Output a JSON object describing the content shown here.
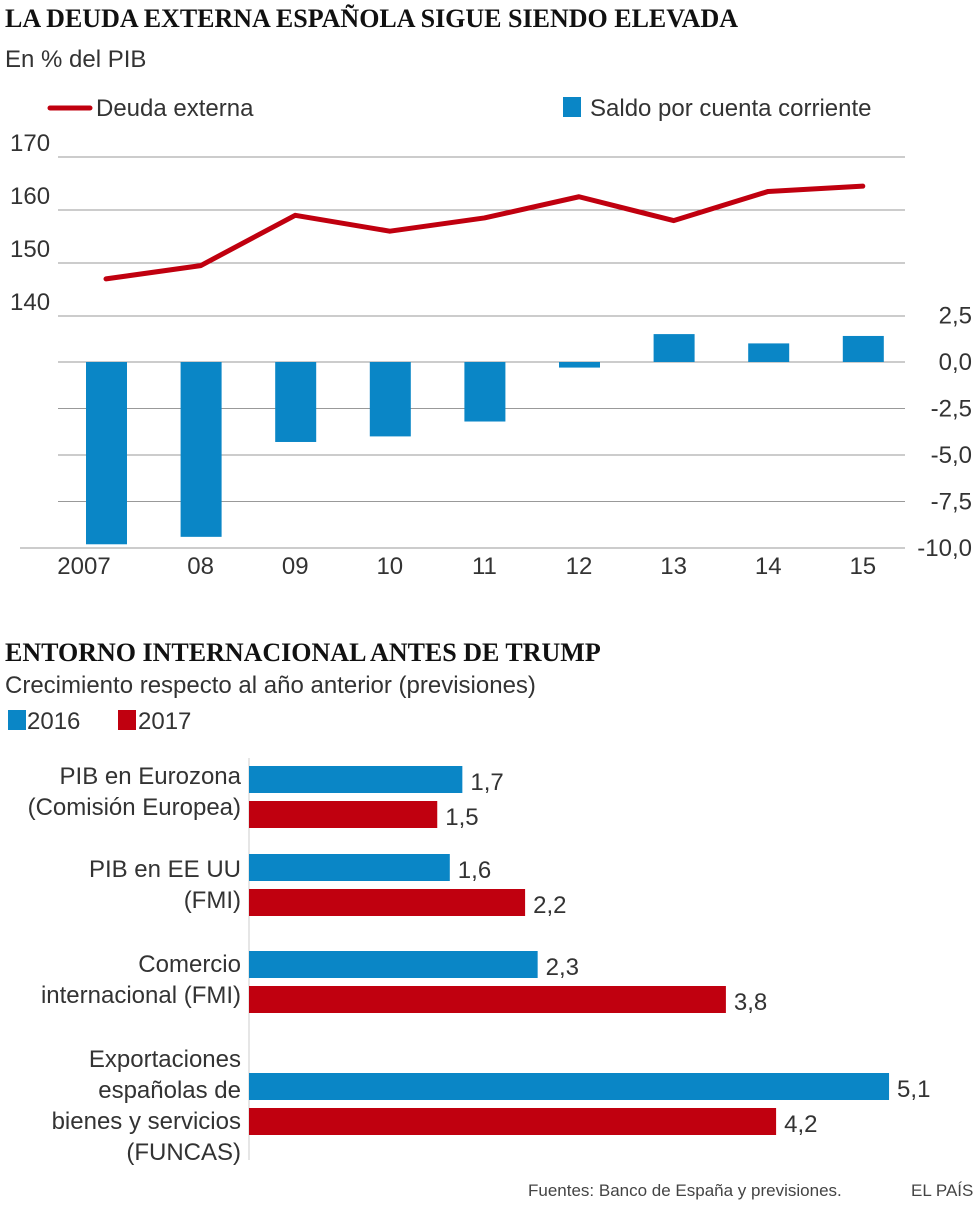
{
  "colors": {
    "line": "#c0000f",
    "bar": "#0a86c6",
    "blue": "#0a86c6",
    "red": "#c0000f",
    "grid": "#999999",
    "text": "#333333"
  },
  "chart_data": [
    {
      "type": "bar+line",
      "title": "LA DEUDA EXTERNA ESPAÑOLA SIGUE SIENDO ELEVADA",
      "subtitle": "En % del PIB",
      "legend": {
        "line_label": "Deuda externa",
        "bar_label": "Saldo por cuenta corriente"
      },
      "categories": [
        "2007",
        "08",
        "09",
        "10",
        "11",
        "12",
        "13",
        "14",
        "15"
      ],
      "series": [
        {
          "name": "Deuda externa",
          "type": "line",
          "axis": "left",
          "values": [
            147,
            149.5,
            159,
            156,
            158.5,
            162.5,
            158,
            163.5,
            164.5
          ]
        },
        {
          "name": "Saldo por cuenta corriente",
          "type": "bar",
          "axis": "right",
          "values": [
            -9.8,
            -9.4,
            -4.3,
            -4.0,
            -3.2,
            -0.3,
            1.5,
            1.0,
            1.4
          ]
        }
      ],
      "left_axis": {
        "ticks": [
          "170",
          "160",
          "150",
          "140"
        ],
        "values": [
          170,
          160,
          150,
          140
        ],
        "range": [
          140,
          170
        ]
      },
      "right_axis": {
        "ticks": [
          "2,5",
          "0,0",
          "-2,5",
          "-5,0",
          "-7,5",
          "-10,0"
        ],
        "values": [
          2.5,
          0,
          -2.5,
          -5,
          -7.5,
          -10
        ],
        "range": [
          -10,
          2.5
        ]
      }
    },
    {
      "type": "bar",
      "orientation": "horizontal",
      "title": "ENTORNO INTERNACIONAL ANTES DE TRUMP",
      "subtitle": "Crecimiento respecto al año anterior (previsiones)",
      "legend": [
        "2016",
        "2017"
      ],
      "groups": [
        {
          "label_lines": [
            "PIB en Eurozona",
            "(Comisión Europea)"
          ],
          "values": [
            1.7,
            1.5
          ],
          "labels": [
            "1,7",
            "1,5"
          ]
        },
        {
          "label_lines": [
            "PIB en EE UU",
            "(FMI)"
          ],
          "values": [
            1.6,
            2.2
          ],
          "labels": [
            "1,6",
            "2,2"
          ]
        },
        {
          "label_lines": [
            "Comercio",
            "internacional (FMI)"
          ],
          "values": [
            2.3,
            3.8
          ],
          "labels": [
            "2,3",
            "3,8"
          ]
        },
        {
          "label_lines": [
            "Exportaciones",
            "españolas de",
            "bienes y servicios",
            "(FUNCAS)"
          ],
          "values": [
            5.1,
            4.2
          ],
          "labels": [
            "5,1",
            "4,2"
          ]
        }
      ],
      "xlim": [
        0,
        5.1
      ]
    }
  ],
  "footer": {
    "source": "Fuentes: Banco de España y previsiones.",
    "brand": "EL PAÍS"
  }
}
